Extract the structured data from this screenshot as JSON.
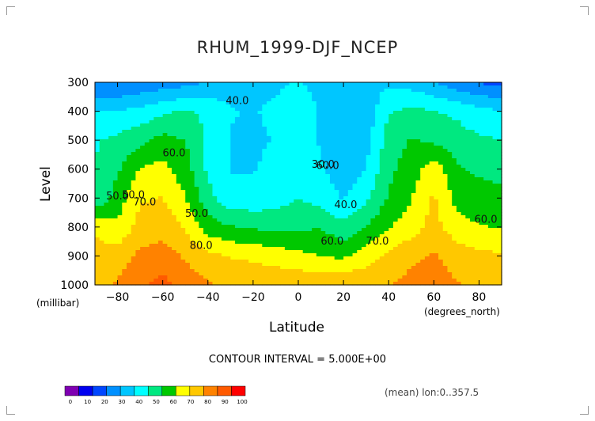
{
  "chart_data": {
    "type": "heatmap",
    "title": "RHUM_1999-DJF_NCEP",
    "xlabel": "Latitude",
    "xunits": "(degrees_north)",
    "ylabel": "Level",
    "yunits": "(millibar)",
    "x_ticks": [
      "-80",
      "-60",
      "-40",
      "-20",
      "0",
      "20",
      "40",
      "60",
      "80"
    ],
    "x_tick_values": [
      -80,
      -60,
      -40,
      -20,
      0,
      20,
      40,
      60,
      80
    ],
    "y_ticks": [
      "300",
      "400",
      "500",
      "600",
      "700",
      "800",
      "900",
      "1000"
    ],
    "y_tick_values": [
      300,
      400,
      500,
      600,
      700,
      800,
      900,
      1000
    ],
    "xlim": [
      -90,
      90
    ],
    "ylim": [
      1000,
      300
    ],
    "contour_interval_text": "CONTOUR INTERVAL = 5.000E+00",
    "footnote": "(mean) lon:0..357.5",
    "contour_labels": [
      "40.0",
      "60.0",
      "30.0",
      "50.0",
      "50.0",
      "70.0",
      "50.0",
      "80.0",
      "60.0",
      "40.0",
      "60.0",
      "70.0",
      "60.0"
    ],
    "colorbar": {
      "ticks": [
        "0",
        "10",
        "20",
        "30",
        "40",
        "50",
        "60",
        "70",
        "80",
        "90",
        "100"
      ],
      "colors": [
        "#7f00b2",
        "#0000f0",
        "#0046ff",
        "#0090ff",
        "#00c6ff",
        "#00ffff",
        "#00e880",
        "#00c800",
        "#ffff00",
        "#ffc800",
        "#ff8200",
        "#ff5a00",
        "#ff0000"
      ]
    },
    "latitudes": [
      -90,
      -80,
      -70,
      -60,
      -50,
      -40,
      -30,
      -20,
      -10,
      0,
      10,
      20,
      30,
      40,
      50,
      60,
      70,
      80,
      90
    ],
    "levels": [
      300,
      400,
      500,
      600,
      700,
      800,
      900,
      1000
    ],
    "values": [
      [
        20,
        20,
        22,
        24,
        26,
        30,
        33,
        35,
        36,
        38,
        35,
        32,
        34,
        36,
        34,
        30,
        24,
        20,
        18
      ],
      [
        38,
        38,
        40,
        44,
        47,
        44,
        38,
        37,
        39,
        44,
        36,
        30,
        32,
        45,
        48,
        46,
        44,
        40,
        38
      ],
      [
        45,
        48,
        52,
        57,
        54,
        44,
        37,
        36,
        38,
        46,
        36,
        31,
        34,
        50,
        55,
        52,
        50,
        47,
        46
      ],
      [
        46,
        53,
        63,
        65,
        58,
        44,
        37,
        37,
        40,
        46,
        39,
        32,
        38,
        52,
        58,
        68,
        55,
        53,
        52
      ],
      [
        46,
        58,
        70,
        71,
        63,
        49,
        40,
        40,
        42,
        46,
        42,
        37,
        44,
        55,
        62,
        72,
        60,
        57,
        56
      ],
      [
        70,
        64,
        74,
        76,
        70,
        58,
        55,
        53,
        52,
        52,
        54,
        48,
        54,
        62,
        67,
        74,
        66,
        63,
        62
      ],
      [
        73,
        75,
        81,
        83,
        78,
        73,
        70,
        69,
        67,
        65,
        62,
        61,
        67,
        73,
        77,
        80,
        75,
        73,
        72
      ],
      [
        76,
        80,
        86,
        90,
        84,
        80,
        78,
        78,
        77,
        77,
        78,
        78,
        77,
        79,
        82,
        84,
        80,
        78,
        78
      ]
    ]
  }
}
